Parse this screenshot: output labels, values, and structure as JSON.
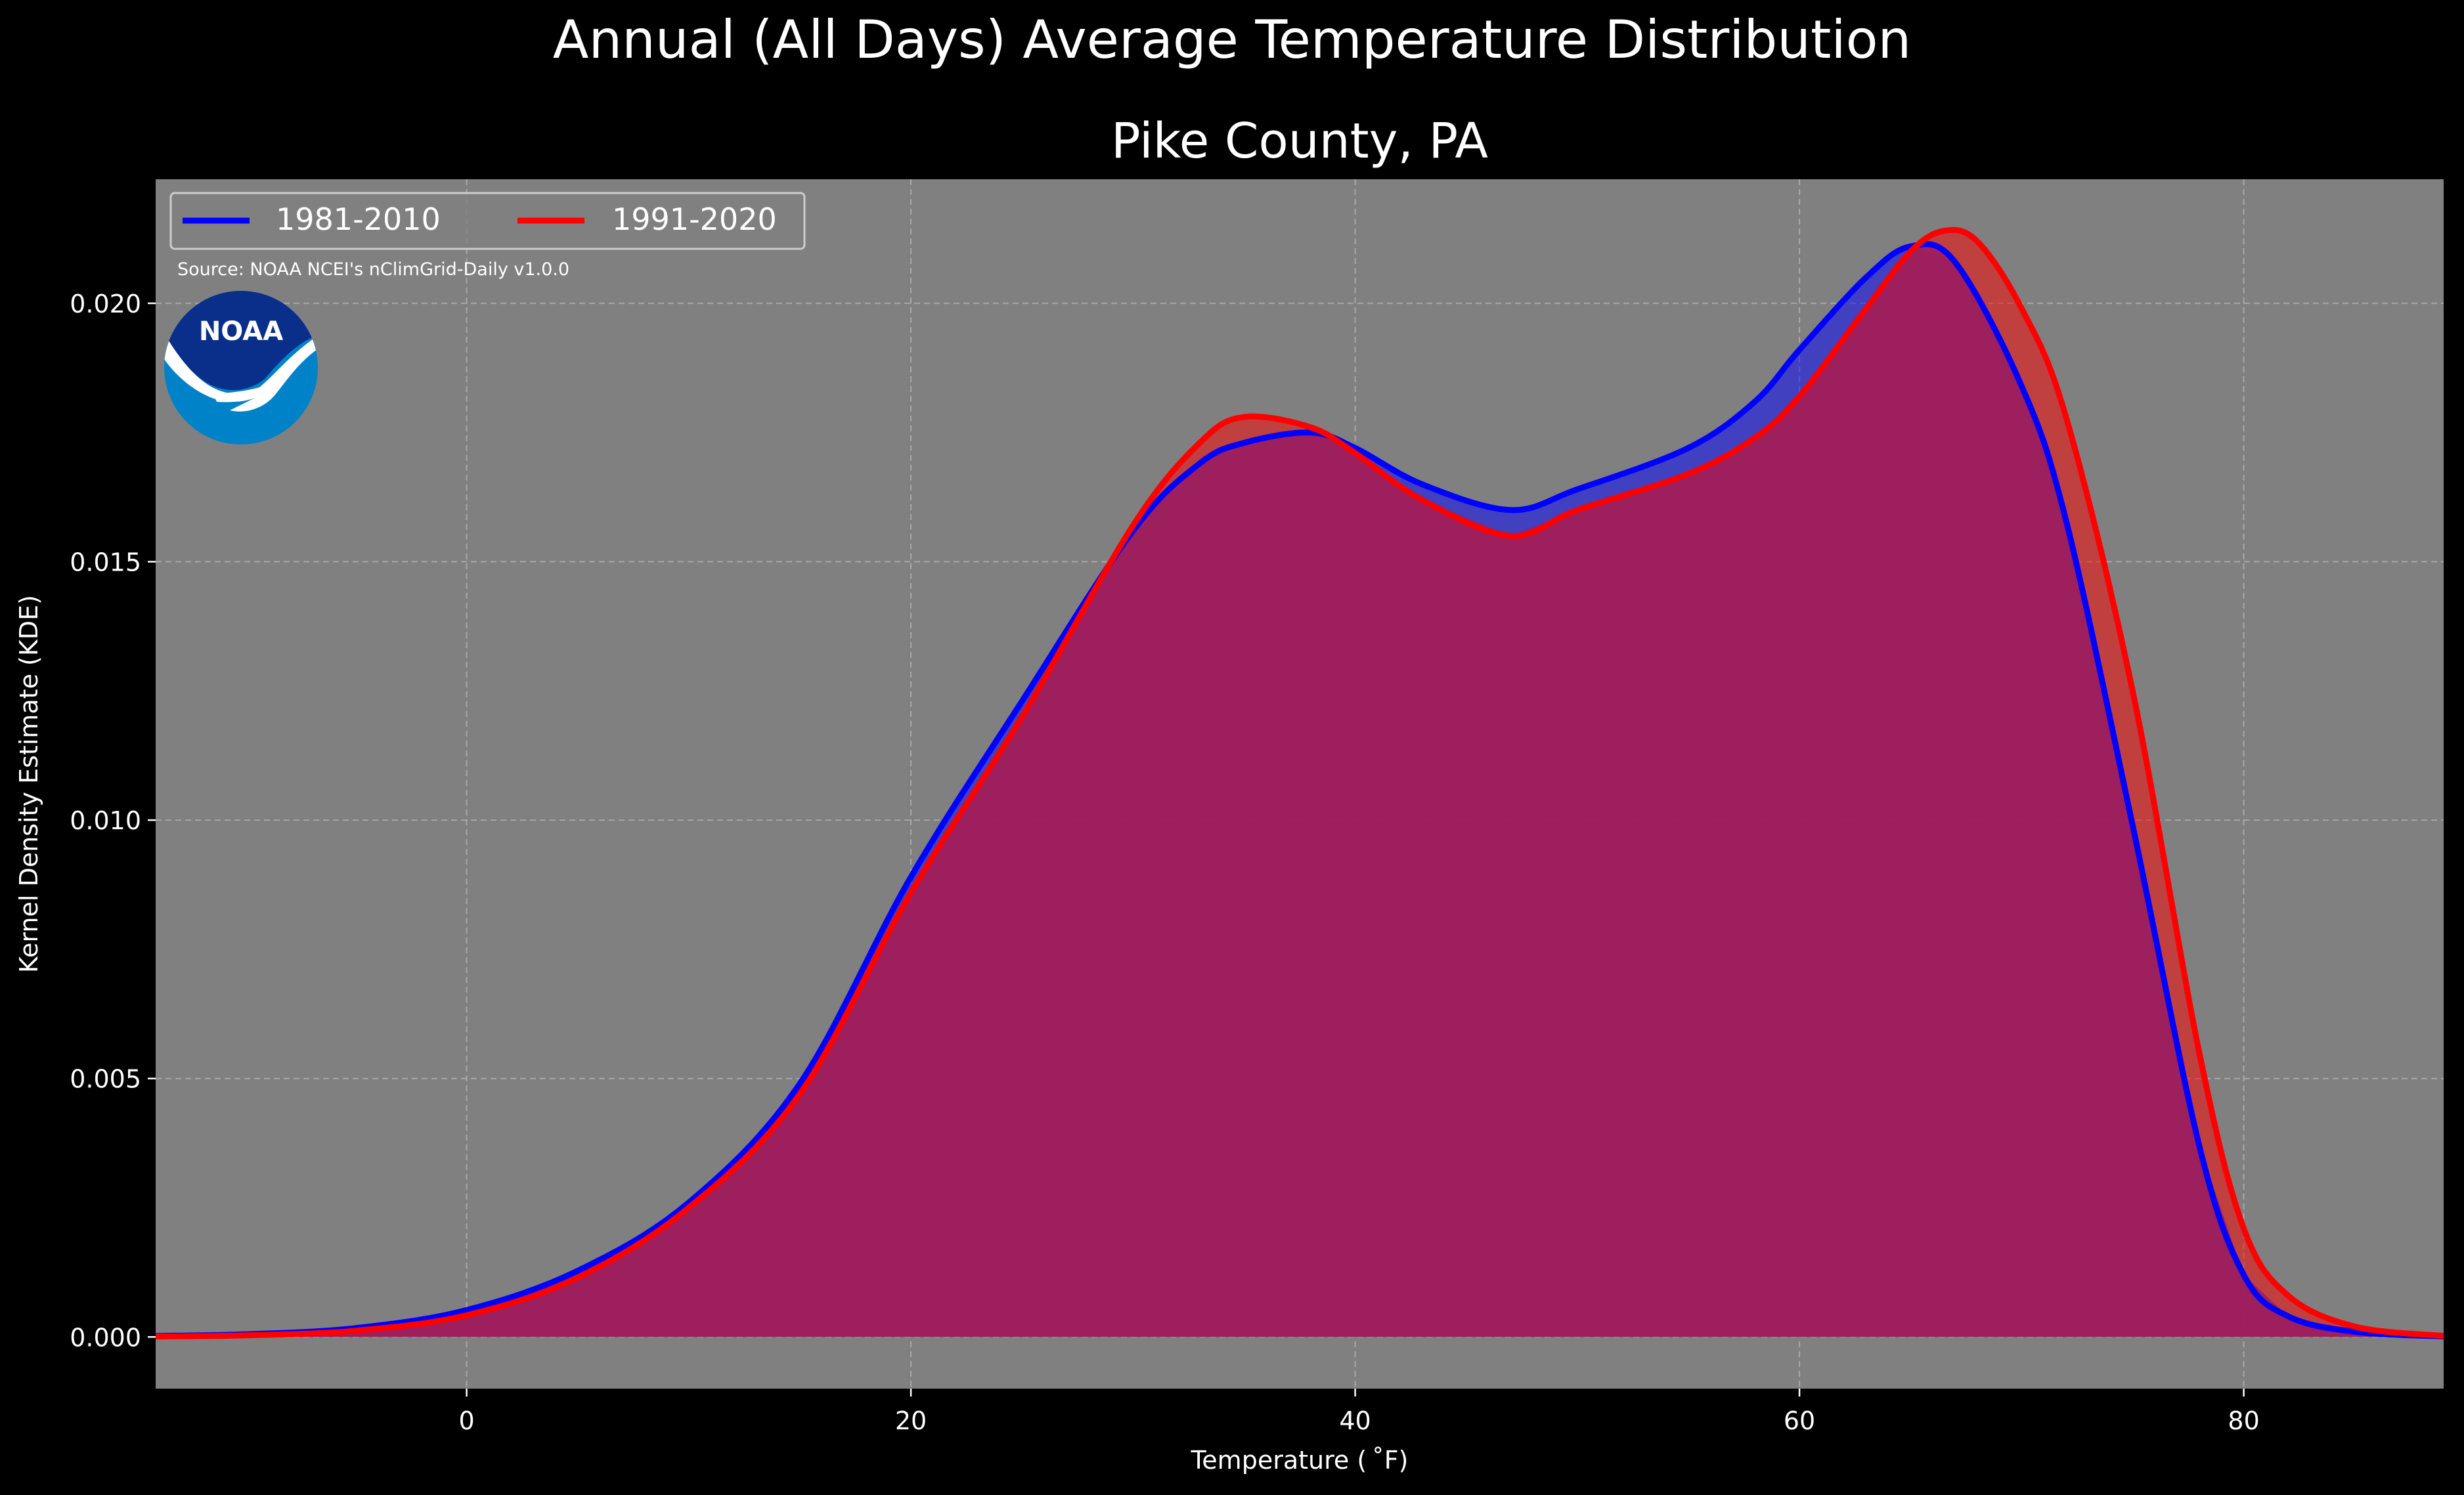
{
  "chart_data": {
    "type": "area",
    "suptitle": "Annual (All Days) Average Temperature Distribution",
    "title": "Pike County, PA",
    "xlabel": "Temperature ($^\\circ$F)",
    "xlabel_display": "Temperature ( ˚F)",
    "ylabel": "Kernel Density Estimate (KDE)",
    "xlim": [
      -14,
      89
    ],
    "ylim": [
      -0.001,
      0.0224
    ],
    "xticks": [
      0,
      20,
      40,
      60,
      80
    ],
    "yticks": [
      0.0,
      0.005,
      0.01,
      0.015,
      0.02
    ],
    "ytick_labels": [
      "0.000",
      "0.005",
      "0.010",
      "0.015",
      "0.020"
    ],
    "grid": true,
    "legend_position": "top-left",
    "source": "Source: NOAA NCEI's nClimGrid-Daily v1.0.0",
    "logo_text": "NOAA",
    "colors": {
      "figure_bg": "#000000",
      "axes_bg": "#808080",
      "series_1981": "#0000ff",
      "series_1991": "#ff0000",
      "fill_blend": "#9c1f5e",
      "noaa_dark": "#0a2f8a",
      "noaa_light": "#0082c8"
    },
    "series": [
      {
        "name": "1981-2010",
        "color": "#0000ff",
        "x": [
          -14,
          -10,
          -5,
          0,
          5,
          10,
          15,
          20,
          25,
          30,
          33,
          35,
          38,
          40,
          43,
          47,
          50,
          55,
          58,
          60,
          63,
          65,
          67,
          70,
          72,
          75,
          78,
          80,
          82,
          85,
          89
        ],
        "y": [
          2e-05,
          5e-05,
          0.00017,
          0.00052,
          0.00128,
          0.0026,
          0.0049,
          0.0089,
          0.0123,
          0.0156,
          0.0169,
          0.0173,
          0.0175,
          0.0172,
          0.0165,
          0.016,
          0.0164,
          0.0172,
          0.0181,
          0.0191,
          0.0205,
          0.0211,
          0.0208,
          0.0184,
          0.0158,
          0.0099,
          0.0037,
          0.0012,
          0.0004,
          0.0001,
          1e-05
        ]
      },
      {
        "name": "1991-2020",
        "color": "#ff0000",
        "x": [
          -14,
          -10,
          -5,
          0,
          5,
          10,
          15,
          20,
          25,
          30,
          33,
          35,
          38,
          40,
          43,
          47,
          50,
          55,
          58,
          60,
          63,
          65,
          66.5,
          68,
          70,
          72,
          75,
          78,
          80,
          82,
          85,
          89
        ],
        "y": [
          1e-05,
          3e-05,
          0.00012,
          0.00042,
          0.00115,
          0.0025,
          0.0047,
          0.0086,
          0.012,
          0.0157,
          0.0173,
          0.0178,
          0.0176,
          0.0171,
          0.0162,
          0.0155,
          0.016,
          0.0167,
          0.0174,
          0.0182,
          0.0199,
          0.021,
          0.0214,
          0.0212,
          0.0199,
          0.0178,
          0.0125,
          0.0055,
          0.0021,
          0.0008,
          0.0002,
          2e-05
        ]
      }
    ]
  }
}
